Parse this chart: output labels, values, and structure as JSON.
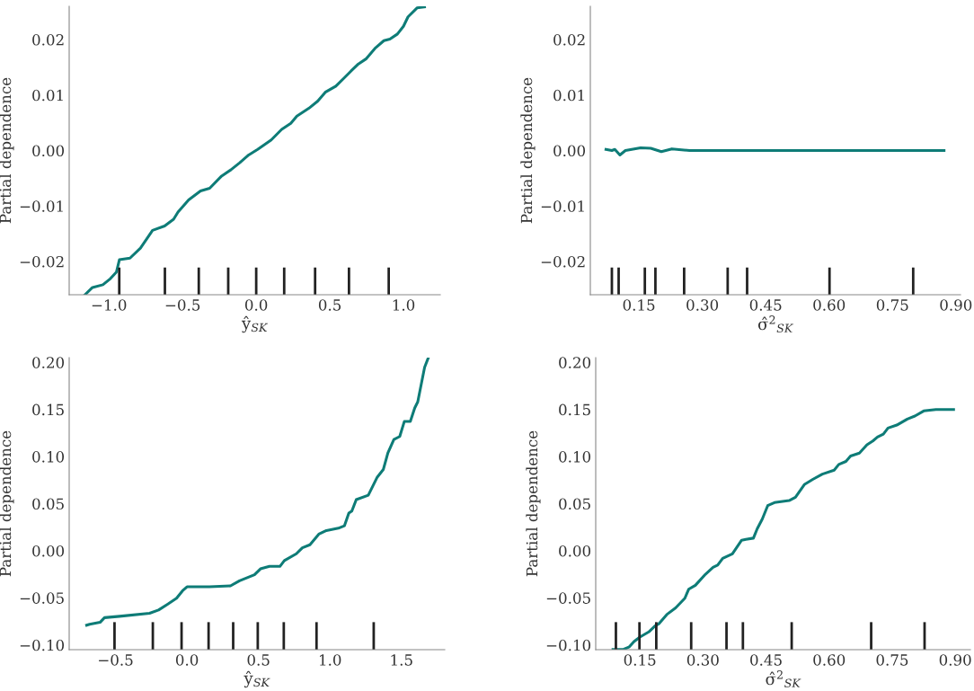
{
  "chart_data": [
    {
      "type": "line",
      "xlabel": "ŷ$_{SK}$",
      "ylabel": "Partial dependence",
      "xlim": [
        -1.27,
        1.25
      ],
      "ylim": [
        -0.026,
        0.026
      ],
      "xticks": [
        {
          "value": -1.0,
          "label": "−1.0"
        },
        {
          "value": -0.5,
          "label": "−0.5"
        },
        {
          "value": 0.0,
          "label": "0.0"
        },
        0.5,
        {
          "value": 1.0,
          "label": "1.0"
        }
      ],
      "yticks": [
        {
          "value": -0.02,
          "label": "−0.02"
        },
        {
          "value": -0.01,
          "label": "−0.01"
        },
        {
          "value": 0.0,
          "label": "0.00"
        },
        0.01,
        0.02
      ],
      "grid": false,
      "series": [
        {
          "color": "#0e7c77",
          "x": [
            -1.163,
            -1.112,
            -1.041,
            -0.99,
            -0.949,
            -0.929,
            -0.857,
            -0.786,
            -0.704,
            -0.622,
            -0.561,
            -0.531,
            -0.459,
            -0.378,
            -0.316,
            -0.235,
            -0.173,
            -0.112,
            -0.051,
            0.01,
            0.102,
            0.173,
            0.235,
            0.276,
            0.357,
            0.418,
            0.469,
            0.541,
            0.602,
            0.643,
            0.694,
            0.745,
            0.806,
            0.867,
            0.908,
            0.959,
            1.0,
            1.031,
            1.092,
            1.143
          ],
          "values": [
            -0.026,
            -0.0247,
            -0.0242,
            -0.0231,
            -0.0219,
            -0.0197,
            -0.0194,
            -0.0176,
            -0.0144,
            -0.0136,
            -0.0124,
            -0.0111,
            -0.0089,
            -0.0073,
            -0.0068,
            -0.0046,
            -0.0035,
            -0.0022,
            -0.0008,
            0.0002,
            0.0019,
            0.0038,
            0.0049,
            0.0062,
            0.0076,
            0.0089,
            0.0105,
            0.0116,
            0.0132,
            0.0143,
            0.0156,
            0.0165,
            0.0184,
            0.0198,
            0.0201,
            0.021,
            0.0224,
            0.0241,
            0.0257,
            0.0259
          ]
        }
      ],
      "ref_lines": [
        {
          "axis": "x",
          "value": -0.93,
          "color": "#222222"
        },
        {
          "axis": "x",
          "value": -0.62,
          "color": "#222222"
        },
        {
          "axis": "x",
          "value": -0.39,
          "color": "#222222"
        },
        {
          "axis": "x",
          "value": -0.19,
          "color": "#222222"
        },
        {
          "axis": "x",
          "value": 0.0,
          "color": "#222222"
        },
        {
          "axis": "x",
          "value": 0.19,
          "color": "#222222"
        },
        {
          "axis": "x",
          "value": 0.4,
          "color": "#222222"
        },
        {
          "axis": "x",
          "value": 0.63,
          "color": "#222222"
        },
        {
          "axis": "x",
          "value": 0.9,
          "color": "#222222"
        }
      ]
    },
    {
      "type": "line",
      "xlabel": "σ̂$^{2}$$_{SK}$",
      "ylabel": "Partial dependence",
      "xlim": [
        0.035,
        0.911
      ],
      "ylim": [
        -0.026,
        0.026
      ],
      "xticks": [
        {
          "value": 0.15,
          "label": "0.15"
        },
        {
          "value": 0.3,
          "label": "0.30"
        },
        0.45,
        {
          "value": 0.6,
          "label": "0.60"
        },
        0.75,
        {
          "value": 0.9,
          "label": "0.90"
        }
      ],
      "yticks": [
        {
          "value": -0.02,
          "label": "−0.02"
        },
        {
          "value": -0.01,
          "label": "−0.01"
        },
        {
          "value": 0.0,
          "label": "0.00"
        },
        0.01,
        0.02
      ],
      "grid": false,
      "series": [
        {
          "color": "#0e7c77",
          "x": [
            0.072,
            0.086,
            0.093,
            0.105,
            0.118,
            0.154,
            0.178,
            0.203,
            0.228,
            0.27,
            0.872
          ],
          "values": [
            0.0002,
            0.0,
            0.0002,
            -0.0008,
            0.0,
            0.0005,
            0.0004,
            -0.0002,
            0.0003,
            0.0,
            0.0
          ]
        }
      ],
      "ref_lines": [
        {
          "axis": "x",
          "value": 0.086,
          "color": "#222222"
        },
        {
          "axis": "x",
          "value": 0.102,
          "color": "#222222"
        },
        {
          "axis": "x",
          "value": 0.164,
          "color": "#222222"
        },
        {
          "axis": "x",
          "value": 0.189,
          "color": "#222222"
        },
        {
          "axis": "x",
          "value": 0.257,
          "color": "#222222"
        },
        {
          "axis": "x",
          "value": 0.36,
          "color": "#222222"
        },
        {
          "axis": "x",
          "value": 0.406,
          "color": "#222222"
        },
        {
          "axis": "x",
          "value": 0.601,
          "color": "#222222"
        },
        {
          "axis": "x",
          "value": 0.799,
          "color": "#222222"
        }
      ]
    },
    {
      "type": "line",
      "xlabel": "ŷ$_{SK}$",
      "ylabel": "Partial dependence",
      "xlim": [
        -0.824,
        1.803
      ],
      "ylim": [
        -0.105,
        0.205
      ],
      "xticks": [
        {
          "value": -0.5,
          "label": "−0.5"
        },
        {
          "value": 0.0,
          "label": "0.0"
        },
        0.5,
        {
          "value": 1.0,
          "label": "1.0"
        },
        1.5
      ],
      "yticks": [
        {
          "value": -0.1,
          "label": "−0.10"
        },
        {
          "value": -0.05,
          "label": "−0.05"
        },
        {
          "value": 0.0,
          "label": "0.00"
        },
        0.05,
        {
          "value": 0.1,
          "label": "0.10"
        },
        0.15,
        {
          "value": 0.2,
          "label": "0.20"
        }
      ],
      "grid": false,
      "series": [
        {
          "color": "#0e7c77",
          "x": [
            -0.702,
            -0.681,
            -0.608,
            -0.577,
            -0.472,
            -0.262,
            -0.199,
            -0.136,
            -0.073,
            -0.031,
            0.0,
            0.157,
            0.304,
            0.367,
            0.472,
            0.514,
            0.577,
            0.65,
            0.681,
            0.765,
            0.807,
            0.86,
            0.922,
            0.975,
            1.059,
            1.101,
            1.132,
            1.153,
            1.184,
            1.268,
            1.331,
            1.373,
            1.405,
            1.447,
            1.488,
            1.52,
            1.562,
            1.593,
            1.614,
            1.662,
            1.688
          ],
          "values": [
            -0.079,
            -0.078,
            -0.076,
            -0.071,
            -0.0696,
            -0.0664,
            -0.0629,
            -0.0568,
            -0.0504,
            -0.0425,
            -0.0383,
            -0.0383,
            -0.0373,
            -0.0319,
            -0.0255,
            -0.0192,
            -0.0166,
            -0.0166,
            -0.0105,
            -0.0032,
            0.0032,
            0.0064,
            0.0176,
            0.0214,
            0.0239,
            0.0265,
            0.0399,
            0.0421,
            0.0543,
            0.059,
            0.0782,
            0.0862,
            0.1037,
            0.1181,
            0.1213,
            0.1372,
            0.1372,
            0.1516,
            0.158,
            0.1947,
            0.2049
          ]
        }
      ],
      "ref_lines": [
        {
          "axis": "x",
          "value": -0.507,
          "color": "#222222"
        },
        {
          "axis": "x",
          "value": -0.239,
          "color": "#222222"
        },
        {
          "axis": "x",
          "value": -0.038,
          "color": "#222222"
        },
        {
          "axis": "x",
          "value": 0.151,
          "color": "#222222"
        },
        {
          "axis": "x",
          "value": 0.323,
          "color": "#222222"
        },
        {
          "axis": "x",
          "value": 0.495,
          "color": "#222222"
        },
        {
          "axis": "x",
          "value": 0.677,
          "color": "#222222"
        },
        {
          "axis": "x",
          "value": 0.906,
          "color": "#222222"
        },
        {
          "axis": "x",
          "value": 1.306,
          "color": "#222222"
        }
      ]
    },
    {
      "type": "line",
      "xlabel": "σ̂$^{2}$$_{SK}$",
      "ylabel": "Partial dependence",
      "xlim": [
        0.045,
        0.936
      ],
      "ylim": [
        -0.105,
        0.205
      ],
      "xticks": [
        {
          "value": 0.15,
          "label": "0.15"
        },
        {
          "value": 0.3,
          "label": "0.30"
        },
        0.45,
        {
          "value": 0.6,
          "label": "0.60"
        },
        0.75,
        {
          "value": 0.9,
          "label": "0.90"
        }
      ],
      "yticks": [
        {
          "value": -0.1,
          "label": "−0.10"
        },
        {
          "value": -0.05,
          "label": "−0.05"
        },
        {
          "value": 0.0,
          "label": "0.00"
        },
        0.05,
        {
          "value": 0.1,
          "label": "0.10"
        },
        0.15,
        {
          "value": 0.2,
          "label": "0.20"
        }
      ],
      "grid": false,
      "series": [
        {
          "color": "#0e7c77",
          "x": [
            0.086,
            0.111,
            0.125,
            0.136,
            0.15,
            0.171,
            0.186,
            0.196,
            0.214,
            0.235,
            0.257,
            0.266,
            0.282,
            0.306,
            0.324,
            0.335,
            0.347,
            0.37,
            0.392,
            0.402,
            0.42,
            0.429,
            0.441,
            0.454,
            0.47,
            0.505,
            0.52,
            0.541,
            0.562,
            0.584,
            0.612,
            0.623,
            0.64,
            0.651,
            0.672,
            0.69,
            0.704,
            0.715,
            0.729,
            0.74,
            0.761,
            0.786,
            0.804,
            0.825,
            0.854,
            0.896
          ],
          "values": [
            -0.1047,
            -0.1047,
            -0.102,
            -0.0964,
            -0.0916,
            -0.0862,
            -0.0798,
            -0.0772,
            -0.0677,
            -0.0606,
            -0.0504,
            -0.0409,
            -0.0367,
            -0.0249,
            -0.0176,
            -0.0153,
            -0.008,
            -0.0032,
            0.0112,
            0.0121,
            0.0134,
            0.0233,
            0.0335,
            0.0479,
            0.0511,
            0.0533,
            0.0568,
            0.0702,
            0.076,
            0.0814,
            0.0855,
            0.0916,
            0.0948,
            0.1005,
            0.1037,
            0.1124,
            0.1165,
            0.1207,
            0.1238,
            0.1302,
            0.1334,
            0.1398,
            0.143,
            0.1484,
            0.15,
            0.15
          ]
        }
      ],
      "ref_lines": [
        {
          "axis": "x",
          "value": 0.093,
          "color": "#222222"
        },
        {
          "axis": "x",
          "value": 0.149,
          "color": "#222222"
        },
        {
          "axis": "x",
          "value": 0.189,
          "color": "#222222"
        },
        {
          "axis": "x",
          "value": 0.272,
          "color": "#222222"
        },
        {
          "axis": "x",
          "value": 0.356,
          "color": "#222222"
        },
        {
          "axis": "x",
          "value": 0.395,
          "color": "#222222"
        },
        {
          "axis": "x",
          "value": 0.511,
          "color": "#222222"
        },
        {
          "axis": "x",
          "value": 0.7,
          "color": "#222222"
        },
        {
          "axis": "x",
          "value": 0.827,
          "color": "#222222"
        }
      ]
    }
  ]
}
